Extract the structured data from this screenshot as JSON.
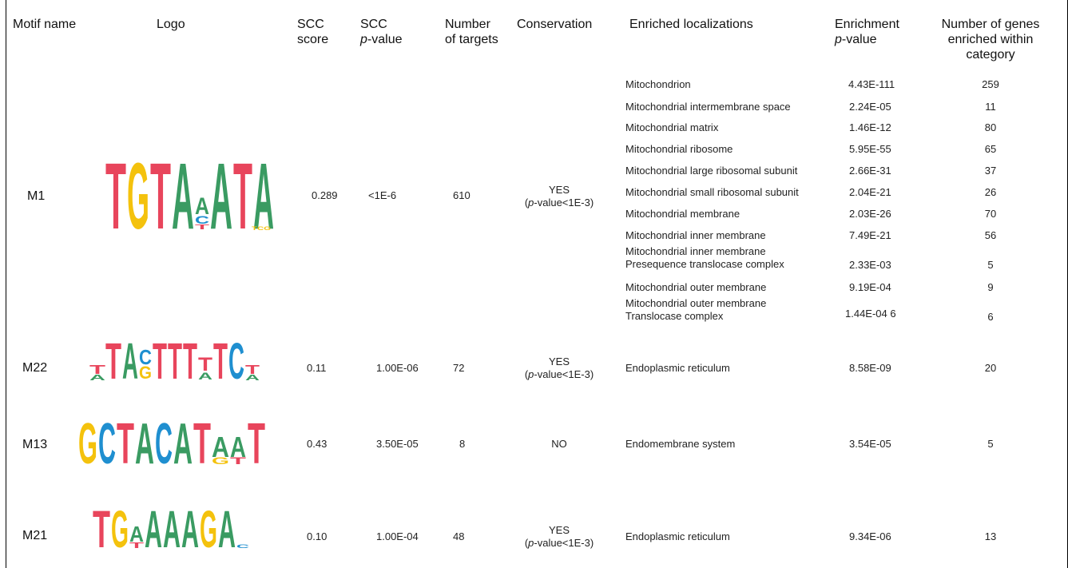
{
  "headers": {
    "motif_name": "Motif name",
    "logo": "Logo",
    "scc_score_1": "SCC",
    "scc_score_2": "score",
    "scc_p_1": "SCC",
    "scc_p_2_italic": "p",
    "scc_p_2_rest": "-value",
    "targets_1": "Number",
    "targets_2": "of targets",
    "conservation": "Conservation",
    "localizations": "Enriched localizations",
    "enrich_p_1": "Enrichment",
    "enrich_p_2_italic": "p",
    "enrich_p_2_rest": "-value",
    "genes_1": "Number of genes",
    "genes_2": "enriched within",
    "genes_3": "category"
  },
  "colors": {
    "T": "#e8455c",
    "G": "#f4c20d",
    "A": "#3a9b62",
    "C": "#1f8fd0"
  },
  "rows": [
    {
      "motif": "M1",
      "logo_letters": "TGTAAATA",
      "scc_score": "0.289",
      "scc_p": "<1E-6",
      "targets": "610",
      "conservation_1": "YES",
      "conservation_2_italic": "p",
      "conservation_2_rest": "-value<1E-3)",
      "localizations": [
        {
          "name": "Mitochondrion",
          "p": "4.43E-111",
          "n": "259"
        },
        {
          "name": "Mitochondrial intermembrane space",
          "p": "2.24E-05",
          "n": "11"
        },
        {
          "name": "Mitochondrial matrix",
          "p": "1.46E-12",
          "n": "80"
        },
        {
          "name": "Mitochondrial ribosome",
          "p": "5.95E-55",
          "n": "65"
        },
        {
          "name": "Mitochondrial large ribosomal subunit",
          "p": "2.66E-31",
          "n": "37"
        },
        {
          "name": "Mitochondrial small ribosomal subunit",
          "p": "2.04E-21",
          "n": "26"
        },
        {
          "name": "Mitochondrial membrane",
          "p": "2.03E-26",
          "n": "70"
        },
        {
          "name": "Mitochondrial inner membrane",
          "p": "7.49E-21",
          "n": "56"
        },
        {
          "name": "Mitochondrial inner membrane",
          "name2": "Presequence translocase complex",
          "p": "2.33E-03",
          "n": "5"
        },
        {
          "name": "Mitochondrial outer membrane",
          "p": "9.19E-04",
          "n": "9"
        },
        {
          "name": "Mitochondrial outer membrane",
          "name2": "Translocase complex",
          "p": "1.44E-04 6",
          "n": "6"
        }
      ]
    },
    {
      "motif": "M22",
      "logo_letters": "TACTTTTTCT",
      "scc_score": "0.11",
      "scc_p": "1.00E-06",
      "targets": "72",
      "conservation_1": "YES",
      "conservation_2_italic": "p",
      "conservation_2_rest": "-value<1E-3)",
      "localizations": [
        {
          "name": "Endoplasmic reticulum",
          "p": "8.58E-09",
          "n": "20"
        }
      ]
    },
    {
      "motif": "M13",
      "logo_letters": "GCTACATAAT",
      "scc_score": "0.43",
      "scc_p": "3.50E-05",
      "targets": "8",
      "conservation_1": "NO",
      "localizations": [
        {
          "name": "Endomembrane system",
          "p": "3.54E-05",
          "n": "5"
        }
      ]
    },
    {
      "motif": "M21",
      "logo_letters": "TGAAAAGA",
      "scc_score": "0.10",
      "scc_p": "1.00E-04",
      "targets": "48",
      "conservation_1": "YES",
      "conservation_2_italic": "p",
      "conservation_2_rest": "-value<1E-3)",
      "localizations": [
        {
          "name": "Endoplasmic reticulum",
          "p": "9.34E-06",
          "n": "13"
        }
      ]
    }
  ]
}
